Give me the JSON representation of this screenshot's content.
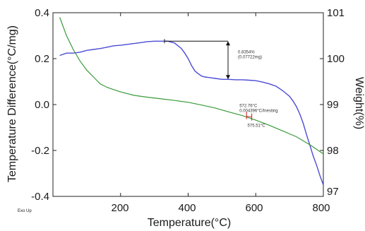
{
  "chart_data": {
    "type": "line",
    "xlabel": "Temperature(°C)",
    "ylabel_left": "Temperature Difference(°C/mg)",
    "ylabel_right": "Weight(%)",
    "corner_label": "Exo Up",
    "xlim": [
      0,
      800
    ],
    "ylim_left": [
      -0.4,
      0.4
    ],
    "ylim_right": [
      97,
      101
    ],
    "x_ticks": [
      "200",
      "400",
      "600",
      "800"
    ],
    "y_left_ticks": [
      "0.4",
      "0.2",
      "0.0",
      "-0.2",
      "-0.4"
    ],
    "y_right_ticks": [
      "101",
      "100",
      "99",
      "98",
      "97"
    ],
    "colors": {
      "dta": "#3a9a3a",
      "tga": "#4b4bd6",
      "marker": "#d83030",
      "arrow": "#111111"
    },
    "series": [
      {
        "key": "tga",
        "axis": "right",
        "x": [
          20,
          40,
          60,
          80,
          100,
          120,
          140,
          160,
          180,
          200,
          220,
          240,
          260,
          280,
          300,
          320,
          340,
          360,
          380,
          390,
          400,
          410,
          420,
          430,
          440,
          450,
          460,
          470,
          480,
          500,
          520,
          540,
          560,
          580,
          600,
          620,
          640,
          660,
          680,
          700,
          710,
          720,
          730,
          740,
          750,
          760,
          770,
          780,
          790,
          800
        ],
        "values": [
          100.07,
          100.12,
          100.12,
          100.14,
          100.18,
          100.2,
          100.22,
          100.25,
          100.28,
          100.29,
          100.31,
          100.33,
          100.35,
          100.37,
          100.38,
          100.38,
          100.38,
          100.34,
          100.22,
          100.12,
          100.0,
          99.85,
          99.73,
          99.67,
          99.62,
          99.6,
          99.59,
          99.58,
          99.57,
          99.55,
          99.55,
          99.54,
          99.54,
          99.53,
          99.52,
          99.49,
          99.45,
          99.4,
          99.3,
          99.18,
          99.08,
          98.96,
          98.8,
          98.6,
          98.35,
          98.12,
          97.88,
          97.68,
          97.45,
          97.25
        ]
      },
      {
        "key": "dta",
        "axis": "left",
        "x": [
          20,
          40,
          60,
          80,
          100,
          120,
          140,
          160,
          180,
          200,
          240,
          280,
          320,
          360,
          400,
          440,
          480,
          520,
          560,
          600,
          640,
          680,
          720,
          760,
          780,
          800
        ],
        "values": [
          0.38,
          0.3,
          0.24,
          0.19,
          0.15,
          0.12,
          0.09,
          0.075,
          0.065,
          0.055,
          0.04,
          0.032,
          0.025,
          0.018,
          0.01,
          -0.002,
          -0.015,
          -0.032,
          -0.048,
          -0.068,
          -0.09,
          -0.115,
          -0.14,
          -0.175,
          -0.195,
          -0.215
        ]
      }
    ],
    "annotations": {
      "mass_loss": {
        "label": "0.8354%",
        "sublabel": "(0.07722mg)",
        "x_from": 330,
        "x_to": 518,
        "top": 100.38,
        "bottom": 99.55
      },
      "transition": {
        "label": "572.76°C",
        "sublabel": "0.004396°C/Inesting",
        "point_label": "575.51°C",
        "x1": 572.76,
        "x2": 575.51,
        "y": -0.048
      }
    }
  }
}
